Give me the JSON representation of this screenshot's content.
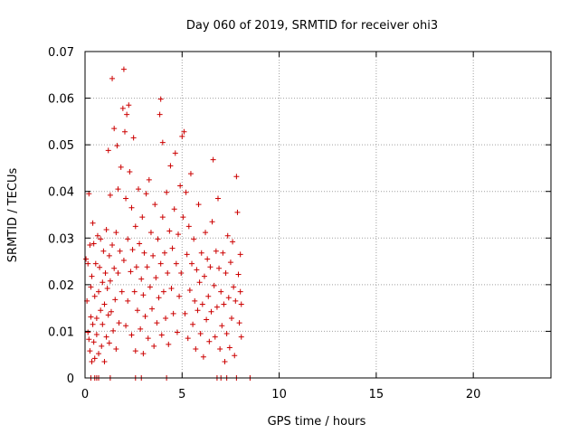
{
  "chart_data": {
    "type": "scatter",
    "title": "Day 060 of 2019, SRMTID for receiver ohi3",
    "xlabel": "GPS time / hours",
    "ylabel": "SRMTID / TECUs",
    "xlim": [
      0,
      24
    ],
    "ylim": [
      0,
      0.07
    ],
    "xticks": [
      0,
      5,
      10,
      15,
      20
    ],
    "xtick_labels": [
      "0",
      "5",
      "10",
      "15",
      "20"
    ],
    "yticks": [
      0,
      0.01,
      0.02,
      0.03,
      0.04,
      0.05,
      0.06,
      0.07
    ],
    "ytick_labels": [
      "0",
      "0.01",
      "0.02",
      "0.03",
      "0.04",
      "0.05",
      "0.06",
      "0.07"
    ],
    "grid": true,
    "marker": "+",
    "color": "#cc0000",
    "series": [
      {
        "points": [
          [
            0.05,
            0.0255
          ],
          [
            0.1,
            0.0165
          ],
          [
            0.15,
            0.0098
          ],
          [
            0.15,
            0.0245
          ],
          [
            0.2,
            0.0083
          ],
          [
            0.2,
            0.0395
          ],
          [
            0.25,
            0.0058
          ],
          [
            0.25,
            0.0285
          ],
          [
            0.3,
            0.0131
          ],
          [
            0.3,
            0.0195
          ],
          [
            0.35,
            0.0035
          ],
          [
            0.35,
            0.0218
          ],
          [
            0.4,
            0.0115
          ],
          [
            0.4,
            0.0332
          ],
          [
            0.45,
            0.0077
          ],
          [
            0.45,
            0.0288
          ],
          [
            0.5,
            0.0175
          ],
          [
            0.5,
            0.0042
          ],
          [
            0.55,
            0.0245
          ],
          [
            0.6,
            0.0128
          ],
          [
            0.6,
            0.0093
          ],
          [
            0.65,
            0.0305
          ],
          [
            0.7,
            0.0185
          ],
          [
            0.7,
            0.0052
          ],
          [
            0.75,
            0.0237
          ],
          [
            0.8,
            0.0145
          ],
          [
            0.8,
            0.0298
          ],
          [
            0.85,
            0.0068
          ],
          [
            0.9,
            0.0205
          ],
          [
            0.9,
            0.0115
          ],
          [
            0.95,
            0.0272
          ],
          [
            1.0,
            0.0158
          ],
          [
            1.0,
            0.0035
          ],
          [
            1.05,
            0.0225
          ],
          [
            1.1,
            0.0088
          ],
          [
            1.1,
            0.0318
          ],
          [
            1.15,
            0.0192
          ],
          [
            1.2,
            0.0135
          ],
          [
            1.2,
            0.0488
          ],
          [
            1.25,
            0.0262
          ],
          [
            1.25,
            0.0075
          ],
          [
            1.3,
            0.0208
          ],
          [
            1.3,
            0.0392
          ],
          [
            1.35,
            0.0142
          ],
          [
            1.4,
            0.0642
          ],
          [
            1.4,
            0.0285
          ],
          [
            1.45,
            0.0101
          ],
          [
            1.5,
            0.0235
          ],
          [
            1.5,
            0.0535
          ],
          [
            1.55,
            0.0168
          ],
          [
            1.6,
            0.0312
          ],
          [
            1.6,
            0.0062
          ],
          [
            1.65,
            0.0498
          ],
          [
            1.7,
            0.0225
          ],
          [
            1.7,
            0.0405
          ],
          [
            1.75,
            0.0118
          ],
          [
            1.8,
            0.0272
          ],
          [
            1.85,
            0.0452
          ],
          [
            1.9,
            0.0185
          ],
          [
            1.95,
            0.0578
          ],
          [
            2.0,
            0.0662
          ],
          [
            2.0,
            0.0252
          ],
          [
            2.05,
            0.0528
          ],
          [
            2.1,
            0.0112
          ],
          [
            2.1,
            0.0385
          ],
          [
            2.15,
            0.0565
          ],
          [
            2.2,
            0.0298
          ],
          [
            2.2,
            0.0165
          ],
          [
            2.25,
            0.0585
          ],
          [
            2.3,
            0.0442
          ],
          [
            2.35,
            0.0228
          ],
          [
            2.4,
            0.0092
          ],
          [
            2.4,
            0.0365
          ],
          [
            2.45,
            0.0275
          ],
          [
            2.5,
            0.0515
          ],
          [
            2.55,
            0.0185
          ],
          [
            2.6,
            0.0058
          ],
          [
            2.6,
            0.0325
          ],
          [
            2.65,
            0.0238
          ],
          [
            2.7,
            0.0145
          ],
          [
            2.75,
            0.0405
          ],
          [
            2.8,
            0.0288
          ],
          [
            2.85,
            0.0105
          ],
          [
            2.9,
            0.0212
          ],
          [
            2.95,
            0.0345
          ],
          [
            3.0,
            0.0052
          ],
          [
            3.0,
            0.0178
          ],
          [
            3.05,
            0.0268
          ],
          [
            3.1,
            0.0132
          ],
          [
            3.15,
            0.0395
          ],
          [
            3.2,
            0.0238
          ],
          [
            3.25,
            0.0085
          ],
          [
            3.3,
            0.0425
          ],
          [
            3.35,
            0.0195
          ],
          [
            3.4,
            0.0312
          ],
          [
            3.45,
            0.0148
          ],
          [
            3.5,
            0.0262
          ],
          [
            3.55,
            0.0068
          ],
          [
            3.6,
            0.0372
          ],
          [
            3.65,
            0.0215
          ],
          [
            3.7,
            0.0118
          ],
          [
            3.75,
            0.0298
          ],
          [
            3.8,
            0.0172
          ],
          [
            3.85,
            0.0565
          ],
          [
            3.9,
            0.0598
          ],
          [
            3.9,
            0.0245
          ],
          [
            3.95,
            0.0092
          ],
          [
            4.0,
            0.0505
          ],
          [
            4.0,
            0.0345
          ],
          [
            4.05,
            0.0185
          ],
          [
            4.1,
            0.0268
          ],
          [
            4.15,
            0.0128
          ],
          [
            4.2,
            0.0398
          ],
          [
            4.25,
            0.0225
          ],
          [
            4.3,
            0.0072
          ],
          [
            4.35,
            0.0315
          ],
          [
            4.4,
            0.0455
          ],
          [
            4.45,
            0.0192
          ],
          [
            4.5,
            0.0278
          ],
          [
            4.55,
            0.0138
          ],
          [
            4.6,
            0.0362
          ],
          [
            4.65,
            0.0482
          ],
          [
            4.7,
            0.0245
          ],
          [
            4.75,
            0.0098
          ],
          [
            4.8,
            0.0308
          ],
          [
            4.85,
            0.0175
          ],
          [
            4.9,
            0.0412
          ],
          [
            4.95,
            0.0225
          ],
          [
            5.0,
            0.0518
          ],
          [
            5.05,
            0.0345
          ],
          [
            5.1,
            0.0528
          ],
          [
            5.15,
            0.0138
          ],
          [
            5.2,
            0.0398
          ],
          [
            5.25,
            0.0265
          ],
          [
            5.3,
            0.0085
          ],
          [
            5.35,
            0.0325
          ],
          [
            5.4,
            0.0188
          ],
          [
            5.45,
            0.0438
          ],
          [
            5.5,
            0.0245
          ],
          [
            5.55,
            0.0115
          ],
          [
            5.6,
            0.0298
          ],
          [
            5.65,
            0.0165
          ],
          [
            5.7,
            0.0062
          ],
          [
            5.75,
            0.0232
          ],
          [
            5.8,
            0.0145
          ],
          [
            5.85,
            0.0372
          ],
          [
            5.9,
            0.0205
          ],
          [
            5.95,
            0.0095
          ],
          [
            6.0,
            0.0268
          ],
          [
            6.05,
            0.0158
          ],
          [
            6.1,
            0.0045
          ],
          [
            6.15,
            0.0218
          ],
          [
            6.2,
            0.0312
          ],
          [
            6.25,
            0.0125
          ],
          [
            6.3,
            0.0255
          ],
          [
            6.35,
            0.0175
          ],
          [
            6.4,
            0.0078
          ],
          [
            6.45,
            0.0238
          ],
          [
            6.5,
            0.0142
          ],
          [
            6.55,
            0.0335
          ],
          [
            6.6,
            0.0468
          ],
          [
            6.65,
            0.0198
          ],
          [
            6.7,
            0.0088
          ],
          [
            6.75,
            0.0272
          ],
          [
            6.8,
            0.0152
          ],
          [
            6.85,
            0.0385
          ],
          [
            6.9,
            0.0235
          ],
          [
            6.95,
            0.0062
          ],
          [
            7.0,
            0.0185
          ],
          [
            7.05,
            0.0112
          ],
          [
            7.1,
            0.0268
          ],
          [
            7.15,
            0.0158
          ],
          [
            7.2,
            0.0035
          ],
          [
            7.25,
            0.0225
          ],
          [
            7.3,
            0.0095
          ],
          [
            7.35,
            0.0305
          ],
          [
            7.4,
            0.0172
          ],
          [
            7.45,
            0.0065
          ],
          [
            7.5,
            0.0248
          ],
          [
            7.55,
            0.0128
          ],
          [
            7.6,
            0.0292
          ],
          [
            7.65,
            0.0195
          ],
          [
            7.7,
            0.0048
          ],
          [
            7.75,
            0.0165
          ],
          [
            7.8,
            0.0432
          ],
          [
            7.85,
            0.0355
          ],
          [
            7.9,
            0.0222
          ],
          [
            7.95,
            0.0118
          ],
          [
            8.0,
            0.0265
          ],
          [
            8.0,
            0.0185
          ],
          [
            8.05,
            0.0088
          ],
          [
            8.05,
            0.0158
          ],
          [
            0.3,
            0.0
          ],
          [
            0.5,
            0.0
          ],
          [
            0.6,
            0.0
          ],
          [
            0.7,
            0.0
          ],
          [
            1.3,
            0.0
          ],
          [
            2.6,
            0.0
          ],
          [
            2.9,
            0.0
          ],
          [
            4.2,
            0.0
          ],
          [
            6.8,
            0.0
          ],
          [
            7.0,
            0.0
          ],
          [
            7.3,
            0.0
          ],
          [
            7.8,
            0.0
          ],
          [
            8.5,
            0.0
          ]
        ]
      }
    ]
  }
}
